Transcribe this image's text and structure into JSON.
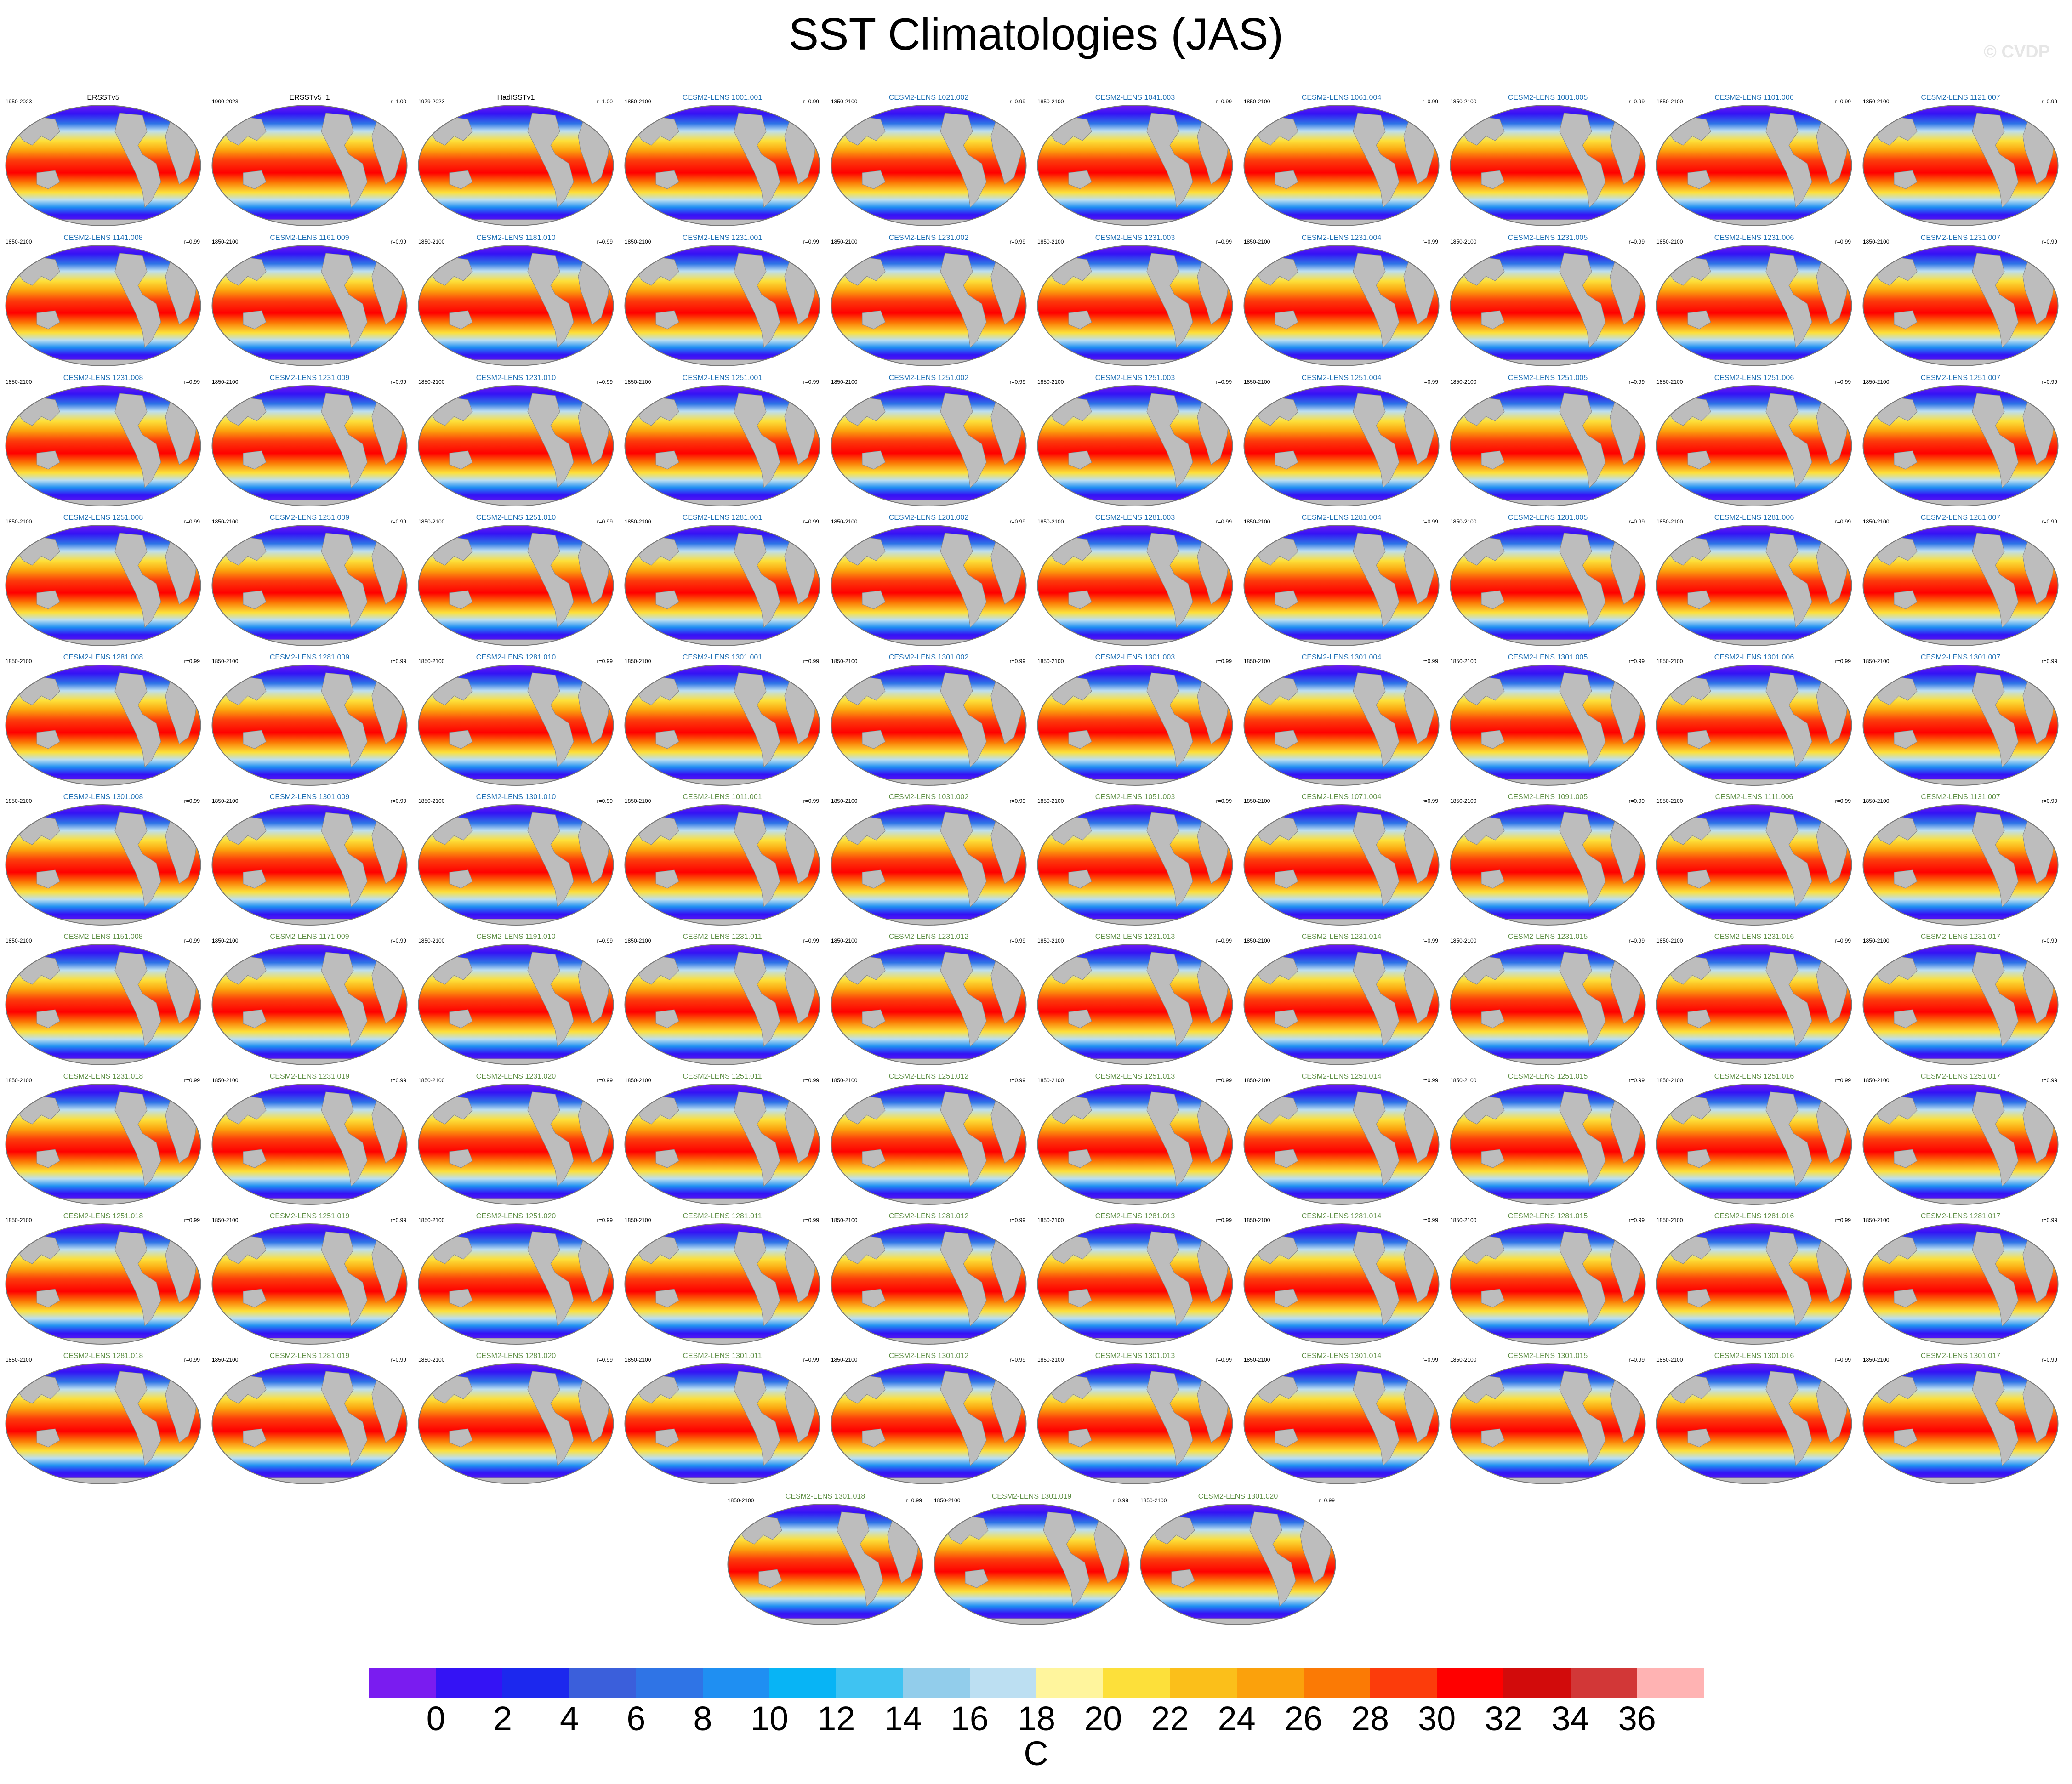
{
  "title": "SST Climatologies (JAS)",
  "watermark": "© CVDP",
  "panels": [
    {
      "years": "1950-2023",
      "name": "ERSSTv5",
      "corr": "",
      "color": "#000000"
    },
    {
      "years": "1900-2023",
      "name": "ERSSTv5_1",
      "corr": "r=1.00",
      "color": "#000000"
    },
    {
      "years": "1979-2023",
      "name": "HadISSTv1",
      "corr": "r=1.00",
      "color": "#000000"
    },
    {
      "years": "1850-2100",
      "name": "CESM2-LENS 1001.001",
      "corr": "r=0.99",
      "color": "#1e6fb4"
    },
    {
      "years": "1850-2100",
      "name": "CESM2-LENS 1021.002",
      "corr": "r=0.99",
      "color": "#1e6fb4"
    },
    {
      "years": "1850-2100",
      "name": "CESM2-LENS 1041.003",
      "corr": "r=0.99",
      "color": "#1e6fb4"
    },
    {
      "years": "1850-2100",
      "name": "CESM2-LENS 1061.004",
      "corr": "r=0.99",
      "color": "#1e6fb4"
    },
    {
      "years": "1850-2100",
      "name": "CESM2-LENS 1081.005",
      "corr": "r=0.99",
      "color": "#1e6fb4"
    },
    {
      "years": "1850-2100",
      "name": "CESM2-LENS 1101.006",
      "corr": "r=0.99",
      "color": "#1e6fb4"
    },
    {
      "years": "1850-2100",
      "name": "CESM2-LENS 1121.007",
      "corr": "r=0.99",
      "color": "#1e6fb4"
    },
    {
      "years": "1850-2100",
      "name": "CESM2-LENS 1141.008",
      "corr": "r=0.99",
      "color": "#1e6fb4"
    },
    {
      "years": "1850-2100",
      "name": "CESM2-LENS 1161.009",
      "corr": "r=0.99",
      "color": "#1e6fb4"
    },
    {
      "years": "1850-2100",
      "name": "CESM2-LENS 1181.010",
      "corr": "r=0.99",
      "color": "#1e6fb4"
    },
    {
      "years": "1850-2100",
      "name": "CESM2-LENS 1231.001",
      "corr": "r=0.99",
      "color": "#1e6fb4"
    },
    {
      "years": "1850-2100",
      "name": "CESM2-LENS 1231.002",
      "corr": "r=0.99",
      "color": "#1e6fb4"
    },
    {
      "years": "1850-2100",
      "name": "CESM2-LENS 1231.003",
      "corr": "r=0.99",
      "color": "#1e6fb4"
    },
    {
      "years": "1850-2100",
      "name": "CESM2-LENS 1231.004",
      "corr": "r=0.99",
      "color": "#1e6fb4"
    },
    {
      "years": "1850-2100",
      "name": "CESM2-LENS 1231.005",
      "corr": "r=0.99",
      "color": "#1e6fb4"
    },
    {
      "years": "1850-2100",
      "name": "CESM2-LENS 1231.006",
      "corr": "r=0.99",
      "color": "#1e6fb4"
    },
    {
      "years": "1850-2100",
      "name": "CESM2-LENS 1231.007",
      "corr": "r=0.99",
      "color": "#1e6fb4"
    },
    {
      "years": "1850-2100",
      "name": "CESM2-LENS 1231.008",
      "corr": "r=0.99",
      "color": "#1e6fb4"
    },
    {
      "years": "1850-2100",
      "name": "CESM2-LENS 1231.009",
      "corr": "r=0.99",
      "color": "#1e6fb4"
    },
    {
      "years": "1850-2100",
      "name": "CESM2-LENS 1231.010",
      "corr": "r=0.99",
      "color": "#1e6fb4"
    },
    {
      "years": "1850-2100",
      "name": "CESM2-LENS 1251.001",
      "corr": "r=0.99",
      "color": "#1e6fb4"
    },
    {
      "years": "1850-2100",
      "name": "CESM2-LENS 1251.002",
      "corr": "r=0.99",
      "color": "#1e6fb4"
    },
    {
      "years": "1850-2100",
      "name": "CESM2-LENS 1251.003",
      "corr": "r=0.99",
      "color": "#1e6fb4"
    },
    {
      "years": "1850-2100",
      "name": "CESM2-LENS 1251.004",
      "corr": "r=0.99",
      "color": "#1e6fb4"
    },
    {
      "years": "1850-2100",
      "name": "CESM2-LENS 1251.005",
      "corr": "r=0.99",
      "color": "#1e6fb4"
    },
    {
      "years": "1850-2100",
      "name": "CESM2-LENS 1251.006",
      "corr": "r=0.99",
      "color": "#1e6fb4"
    },
    {
      "years": "1850-2100",
      "name": "CESM2-LENS 1251.007",
      "corr": "r=0.99",
      "color": "#1e6fb4"
    },
    {
      "years": "1850-2100",
      "name": "CESM2-LENS 1251.008",
      "corr": "r=0.99",
      "color": "#1e6fb4"
    },
    {
      "years": "1850-2100",
      "name": "CESM2-LENS 1251.009",
      "corr": "r=0.99",
      "color": "#1e6fb4"
    },
    {
      "years": "1850-2100",
      "name": "CESM2-LENS 1251.010",
      "corr": "r=0.99",
      "color": "#1e6fb4"
    },
    {
      "years": "1850-2100",
      "name": "CESM2-LENS 1281.001",
      "corr": "r=0.99",
      "color": "#1e6fb4"
    },
    {
      "years": "1850-2100",
      "name": "CESM2-LENS 1281.002",
      "corr": "r=0.99",
      "color": "#1e6fb4"
    },
    {
      "years": "1850-2100",
      "name": "CESM2-LENS 1281.003",
      "corr": "r=0.99",
      "color": "#1e6fb4"
    },
    {
      "years": "1850-2100",
      "name": "CESM2-LENS 1281.004",
      "corr": "r=0.99",
      "color": "#1e6fb4"
    },
    {
      "years": "1850-2100",
      "name": "CESM2-LENS 1281.005",
      "corr": "r=0.99",
      "color": "#1e6fb4"
    },
    {
      "years": "1850-2100",
      "name": "CESM2-LENS 1281.006",
      "corr": "r=0.99",
      "color": "#1e6fb4"
    },
    {
      "years": "1850-2100",
      "name": "CESM2-LENS 1281.007",
      "corr": "r=0.99",
      "color": "#1e6fb4"
    },
    {
      "years": "1850-2100",
      "name": "CESM2-LENS 1281.008",
      "corr": "r=0.99",
      "color": "#1e6fb4"
    },
    {
      "years": "1850-2100",
      "name": "CESM2-LENS 1281.009",
      "corr": "r=0.99",
      "color": "#1e6fb4"
    },
    {
      "years": "1850-2100",
      "name": "CESM2-LENS 1281.010",
      "corr": "r=0.99",
      "color": "#1e6fb4"
    },
    {
      "years": "1850-2100",
      "name": "CESM2-LENS 1301.001",
      "corr": "r=0.99",
      "color": "#1e6fb4"
    },
    {
      "years": "1850-2100",
      "name": "CESM2-LENS 1301.002",
      "corr": "r=0.99",
      "color": "#1e6fb4"
    },
    {
      "years": "1850-2100",
      "name": "CESM2-LENS 1301.003",
      "corr": "r=0.99",
      "color": "#1e6fb4"
    },
    {
      "years": "1850-2100",
      "name": "CESM2-LENS 1301.004",
      "corr": "r=0.99",
      "color": "#1e6fb4"
    },
    {
      "years": "1850-2100",
      "name": "CESM2-LENS 1301.005",
      "corr": "r=0.99",
      "color": "#1e6fb4"
    },
    {
      "years": "1850-2100",
      "name": "CESM2-LENS 1301.006",
      "corr": "r=0.99",
      "color": "#1e6fb4"
    },
    {
      "years": "1850-2100",
      "name": "CESM2-LENS 1301.007",
      "corr": "r=0.99",
      "color": "#1e6fb4"
    },
    {
      "years": "1850-2100",
      "name": "CESM2-LENS 1301.008",
      "corr": "r=0.99",
      "color": "#1e6fb4"
    },
    {
      "years": "1850-2100",
      "name": "CESM2-LENS 1301.009",
      "corr": "r=0.99",
      "color": "#1e6fb4"
    },
    {
      "years": "1850-2100",
      "name": "CESM2-LENS 1301.010",
      "corr": "r=0.99",
      "color": "#1e6fb4"
    },
    {
      "years": "1850-2100",
      "name": "CESM2-LENS 1011.001",
      "corr": "r=0.99",
      "color": "#5f8f46"
    },
    {
      "years": "1850-2100",
      "name": "CESM2-LENS 1031.002",
      "corr": "r=0.99",
      "color": "#5f8f46"
    },
    {
      "years": "1850-2100",
      "name": "CESM2-LENS 1051.003",
      "corr": "r=0.99",
      "color": "#5f8f46"
    },
    {
      "years": "1850-2100",
      "name": "CESM2-LENS 1071.004",
      "corr": "r=0.99",
      "color": "#5f8f46"
    },
    {
      "years": "1850-2100",
      "name": "CESM2-LENS 1091.005",
      "corr": "r=0.99",
      "color": "#5f8f46"
    },
    {
      "years": "1850-2100",
      "name": "CESM2-LENS 1111.006",
      "corr": "r=0.99",
      "color": "#5f8f46"
    },
    {
      "years": "1850-2100",
      "name": "CESM2-LENS 1131.007",
      "corr": "r=0.99",
      "color": "#5f8f46"
    },
    {
      "years": "1850-2100",
      "name": "CESM2-LENS 1151.008",
      "corr": "r=0.99",
      "color": "#5f8f46"
    },
    {
      "years": "1850-2100",
      "name": "CESM2-LENS 1171.009",
      "corr": "r=0.99",
      "color": "#5f8f46"
    },
    {
      "years": "1850-2100",
      "name": "CESM2-LENS 1191.010",
      "corr": "r=0.99",
      "color": "#5f8f46"
    },
    {
      "years": "1850-2100",
      "name": "CESM2-LENS 1231.011",
      "corr": "r=0.99",
      "color": "#5f8f46"
    },
    {
      "years": "1850-2100",
      "name": "CESM2-LENS 1231.012",
      "corr": "r=0.99",
      "color": "#5f8f46"
    },
    {
      "years": "1850-2100",
      "name": "CESM2-LENS 1231.013",
      "corr": "r=0.99",
      "color": "#5f8f46"
    },
    {
      "years": "1850-2100",
      "name": "CESM2-LENS 1231.014",
      "corr": "r=0.99",
      "color": "#5f8f46"
    },
    {
      "years": "1850-2100",
      "name": "CESM2-LENS 1231.015",
      "corr": "r=0.99",
      "color": "#5f8f46"
    },
    {
      "years": "1850-2100",
      "name": "CESM2-LENS 1231.016",
      "corr": "r=0.99",
      "color": "#5f8f46"
    },
    {
      "years": "1850-2100",
      "name": "CESM2-LENS 1231.017",
      "corr": "r=0.99",
      "color": "#5f8f46"
    },
    {
      "years": "1850-2100",
      "name": "CESM2-LENS 1231.018",
      "corr": "r=0.99",
      "color": "#5f8f46"
    },
    {
      "years": "1850-2100",
      "name": "CESM2-LENS 1231.019",
      "corr": "r=0.99",
      "color": "#5f8f46"
    },
    {
      "years": "1850-2100",
      "name": "CESM2-LENS 1231.020",
      "corr": "r=0.99",
      "color": "#5f8f46"
    },
    {
      "years": "1850-2100",
      "name": "CESM2-LENS 1251.011",
      "corr": "r=0.99",
      "color": "#5f8f46"
    },
    {
      "years": "1850-2100",
      "name": "CESM2-LENS 1251.012",
      "corr": "r=0.99",
      "color": "#5f8f46"
    },
    {
      "years": "1850-2100",
      "name": "CESM2-LENS 1251.013",
      "corr": "r=0.99",
      "color": "#5f8f46"
    },
    {
      "years": "1850-2100",
      "name": "CESM2-LENS 1251.014",
      "corr": "r=0.99",
      "color": "#5f8f46"
    },
    {
      "years": "1850-2100",
      "name": "CESM2-LENS 1251.015",
      "corr": "r=0.99",
      "color": "#5f8f46"
    },
    {
      "years": "1850-2100",
      "name": "CESM2-LENS 1251.016",
      "corr": "r=0.99",
      "color": "#5f8f46"
    },
    {
      "years": "1850-2100",
      "name": "CESM2-LENS 1251.017",
      "corr": "r=0.99",
      "color": "#5f8f46"
    },
    {
      "years": "1850-2100",
      "name": "CESM2-LENS 1251.018",
      "corr": "r=0.99",
      "color": "#5f8f46"
    },
    {
      "years": "1850-2100",
      "name": "CESM2-LENS 1251.019",
      "corr": "r=0.99",
      "color": "#5f8f46"
    },
    {
      "years": "1850-2100",
      "name": "CESM2-LENS 1251.020",
      "corr": "r=0.99",
      "color": "#5f8f46"
    },
    {
      "years": "1850-2100",
      "name": "CESM2-LENS 1281.011",
      "corr": "r=0.99",
      "color": "#5f8f46"
    },
    {
      "years": "1850-2100",
      "name": "CESM2-LENS 1281.012",
      "corr": "r=0.99",
      "color": "#5f8f46"
    },
    {
      "years": "1850-2100",
      "name": "CESM2-LENS 1281.013",
      "corr": "r=0.99",
      "color": "#5f8f46"
    },
    {
      "years": "1850-2100",
      "name": "CESM2-LENS 1281.014",
      "corr": "r=0.99",
      "color": "#5f8f46"
    },
    {
      "years": "1850-2100",
      "name": "CESM2-LENS 1281.015",
      "corr": "r=0.99",
      "color": "#5f8f46"
    },
    {
      "years": "1850-2100",
      "name": "CESM2-LENS 1281.016",
      "corr": "r=0.99",
      "color": "#5f8f46"
    },
    {
      "years": "1850-2100",
      "name": "CESM2-LENS 1281.017",
      "corr": "r=0.99",
      "color": "#5f8f46"
    },
    {
      "years": "1850-2100",
      "name": "CESM2-LENS 1281.018",
      "corr": "r=0.99",
      "color": "#5f8f46"
    },
    {
      "years": "1850-2100",
      "name": "CESM2-LENS 1281.019",
      "corr": "r=0.99",
      "color": "#5f8f46"
    },
    {
      "years": "1850-2100",
      "name": "CESM2-LENS 1281.020",
      "corr": "r=0.99",
      "color": "#5f8f46"
    },
    {
      "years": "1850-2100",
      "name": "CESM2-LENS 1301.011",
      "corr": "r=0.99",
      "color": "#5f8f46"
    },
    {
      "years": "1850-2100",
      "name": "CESM2-LENS 1301.012",
      "corr": "r=0.99",
      "color": "#5f8f46"
    },
    {
      "years": "1850-2100",
      "name": "CESM2-LENS 1301.013",
      "corr": "r=0.99",
      "color": "#5f8f46"
    },
    {
      "years": "1850-2100",
      "name": "CESM2-LENS 1301.014",
      "corr": "r=0.99",
      "color": "#5f8f46"
    },
    {
      "years": "1850-2100",
      "name": "CESM2-LENS 1301.015",
      "corr": "r=0.99",
      "color": "#5f8f46"
    },
    {
      "years": "1850-2100",
      "name": "CESM2-LENS 1301.016",
      "corr": "r=0.99",
      "color": "#5f8f46"
    },
    {
      "years": "1850-2100",
      "name": "CESM2-LENS 1301.017",
      "corr": "r=0.99",
      "color": "#5f8f46"
    },
    {
      "years": "1850-2100",
      "name": "CESM2-LENS 1301.018",
      "corr": "r=0.99",
      "color": "#5f8f46"
    },
    {
      "years": "1850-2100",
      "name": "CESM2-LENS 1301.019",
      "corr": "r=0.99",
      "color": "#5f8f46"
    },
    {
      "years": "1850-2100",
      "name": "CESM2-LENS 1301.020",
      "corr": "r=0.99",
      "color": "#5f8f46"
    }
  ],
  "colorbar": {
    "unit": "C",
    "ticks": [
      "0",
      "2",
      "4",
      "6",
      "8",
      "10",
      "12",
      "14",
      "16",
      "18",
      "20",
      "22",
      "24",
      "26",
      "28",
      "30",
      "32",
      "34",
      "36"
    ],
    "colors": [
      "#7a1cf0",
      "#3413f5",
      "#1c28ee",
      "#3b5fdb",
      "#2f74e6",
      "#1f8ff2",
      "#08b4f5",
      "#3fc3f2",
      "#92cdeb",
      "#bcdff2",
      "#fff59d",
      "#fde03a",
      "#fbbf1a",
      "#fba10c",
      "#fb7a05",
      "#fc3c0b",
      "#ff0000",
      "#d20b0b",
      "#d23737",
      "#ffb3b3"
    ]
  }
}
